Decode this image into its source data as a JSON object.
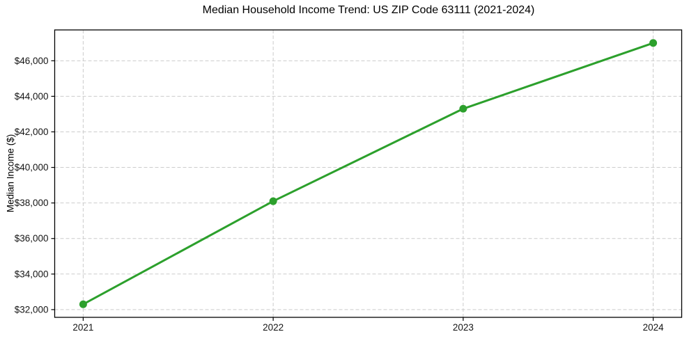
{
  "chart_data": {
    "type": "line",
    "title": "Median Household Income Trend: US ZIP Code 63111 (2021-2024)",
    "ylabel": "Median Income ($)",
    "xlabel": "",
    "x": [
      2021,
      2022,
      2023,
      2024
    ],
    "x_tick_labels": [
      "2021",
      "2022",
      "2023",
      "2024"
    ],
    "values": [
      32300,
      38100,
      43300,
      47000
    ],
    "y_ticks": [
      32000,
      34000,
      36000,
      38000,
      40000,
      42000,
      44000,
      46000
    ],
    "y_tick_labels": [
      "$32,000",
      "$34,000",
      "$36,000",
      "$38,000",
      "$40,000",
      "$42,000",
      "$44,000",
      "$46,000"
    ],
    "xlim": [
      2020.85,
      2024.15
    ],
    "ylim": [
      31565,
      47735
    ],
    "line_color": "#2ca02c",
    "marker": "circle",
    "grid": true,
    "grid_color": "#cccccc",
    "background": "#ffffff",
    "legend_position": "none"
  }
}
